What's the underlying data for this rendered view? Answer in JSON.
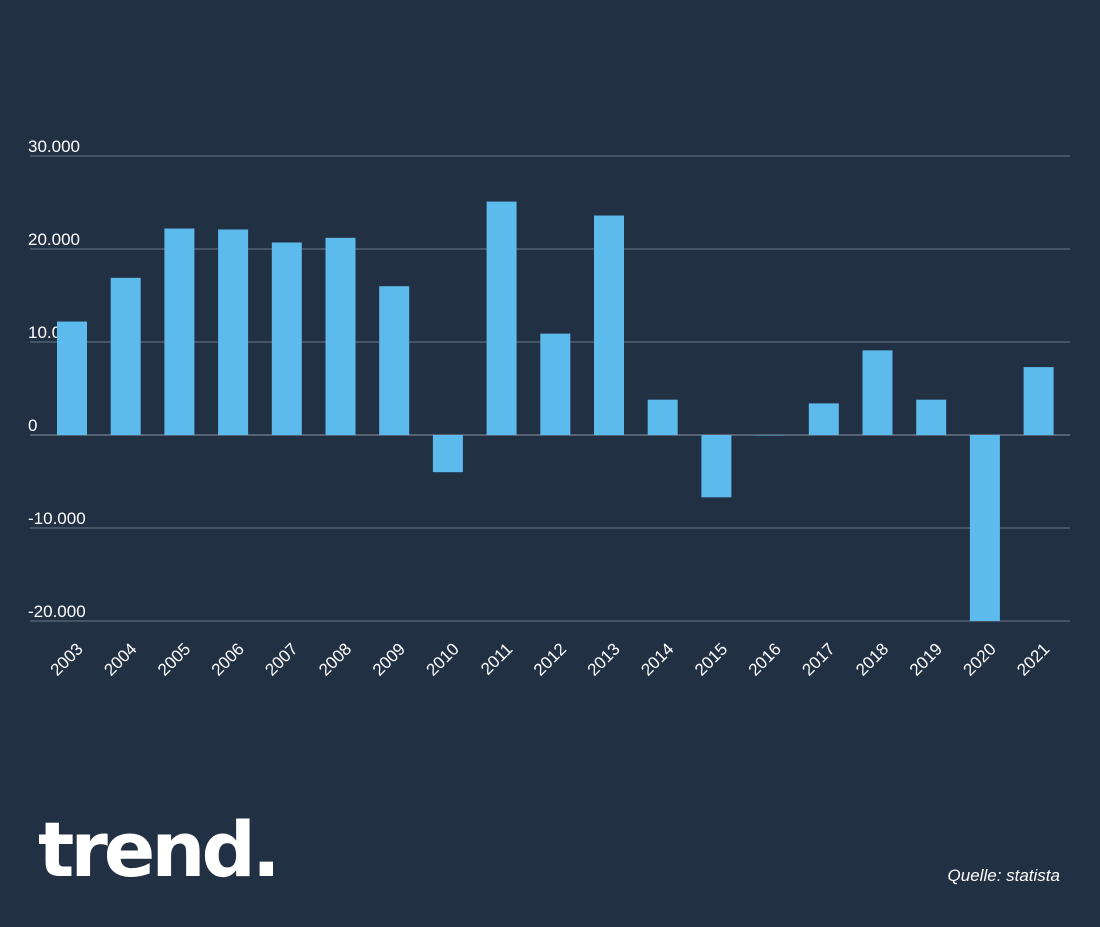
{
  "brand": {
    "logo_text": "trend."
  },
  "source": {
    "text": "Quelle: statista"
  },
  "colors": {
    "background": "#223044",
    "bar": "#5dbaec",
    "grid": "#6b7787",
    "text": "#ffffff"
  },
  "chart_data": {
    "type": "bar",
    "title": "",
    "xlabel": "",
    "ylabel": "",
    "ylim": [
      -20000,
      30000
    ],
    "yticks": [
      30000,
      20000,
      10000,
      0,
      -10000,
      -20000
    ],
    "ytick_labels": [
      "30.000",
      "20.000",
      "10.000",
      "0",
      "-10.000",
      "-20.000"
    ],
    "grid": true,
    "categories": [
      "2003",
      "2004",
      "2005",
      "2006",
      "2007",
      "2008",
      "2009",
      "2010",
      "2011",
      "2012",
      "2013",
      "2014",
      "2015",
      "2016",
      "2017",
      "2018",
      "2019",
      "2020",
      "2021"
    ],
    "values": [
      12200,
      16900,
      22200,
      22100,
      20700,
      21200,
      16000,
      -4000,
      25100,
      10900,
      23600,
      3800,
      -6700,
      0,
      3400,
      9100,
      3800,
      -20000,
      7300
    ]
  }
}
